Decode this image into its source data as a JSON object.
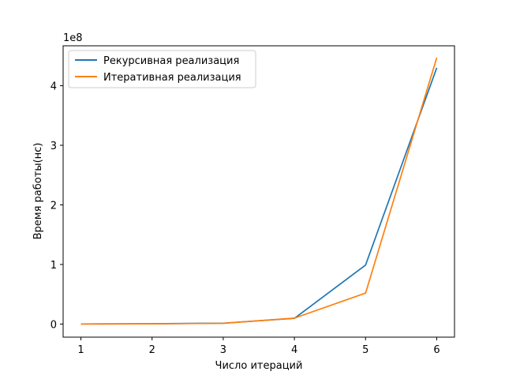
{
  "chart_data": {
    "type": "line",
    "xlabel": "Число итераций",
    "ylabel": "Время работы(нс)",
    "offset_label": "1e8",
    "x": [
      1,
      2,
      3,
      4,
      5,
      6
    ],
    "xticks": [
      "1",
      "2",
      "3",
      "4",
      "5",
      "6"
    ],
    "yticks": [
      {
        "value": 0,
        "label": "0"
      },
      {
        "value": 100000000,
        "label": "1"
      },
      {
        "value": 200000000,
        "label": "2"
      },
      {
        "value": 300000000,
        "label": "3"
      },
      {
        "value": 400000000,
        "label": "4"
      }
    ],
    "xlim": [
      0.75,
      6.25
    ],
    "ylim": [
      -22000000,
      467000000
    ],
    "grid": false,
    "legend_position": "upper-left",
    "series": [
      {
        "name": "Рекурсивная реализация",
        "color": "#1f77b4",
        "values": [
          100000,
          500000,
          1500000,
          9500000,
          99000000,
          430000000
        ]
      },
      {
        "name": "Итеративная реализация",
        "color": "#ff7f0e",
        "values": [
          100000,
          400000,
          1200000,
          10000000,
          52000000,
          447000000
        ]
      }
    ]
  }
}
